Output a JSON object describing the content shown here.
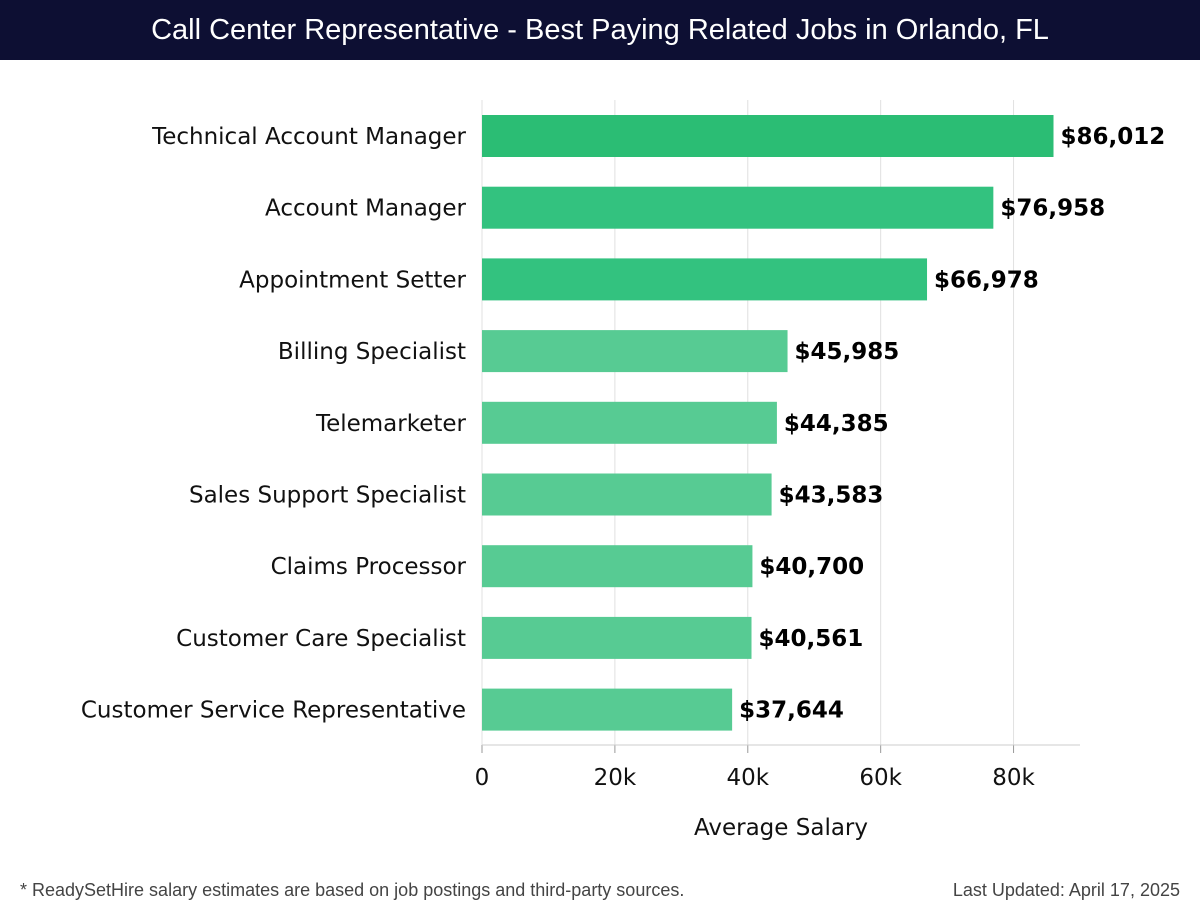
{
  "header": {
    "title": "Call Center Representative - Best Paying Related Jobs in Orlando, FL"
  },
  "footer": {
    "note": "* ReadySetHire salary estimates are based on job postings and third-party sources.",
    "updated": "Last Updated: April 17, 2025"
  },
  "colors": {
    "header_bg": "#0d0f33",
    "bar_top": "#2bbd74",
    "bar_mid": "#33c27f",
    "bar_low": "#57cb93",
    "grid": "#e0e0e0"
  },
  "chart_data": {
    "type": "bar",
    "orientation": "horizontal",
    "categories": [
      "Technical Account Manager",
      "Account Manager",
      "Appointment Setter",
      "Billing Specialist",
      "Telemarketer",
      "Sales Support Specialist",
      "Claims Processor",
      "Customer Care Specialist",
      "Customer Service Representative"
    ],
    "values": [
      86012,
      76958,
      66978,
      45985,
      44385,
      43583,
      40700,
      40561,
      37644
    ],
    "value_labels": [
      "$86,012",
      "$76,958",
      "$66,978",
      "$45,985",
      "$44,385",
      "$43,583",
      "$40,700",
      "$40,561",
      "$37,644"
    ],
    "xlabel": "Average Salary",
    "ylabel": "",
    "xlim": [
      0,
      90000
    ],
    "xticks": [
      0,
      20000,
      40000,
      60000,
      80000
    ],
    "xtick_labels": [
      "0",
      "20k",
      "40k",
      "60k",
      "80k"
    ],
    "grid": true
  }
}
